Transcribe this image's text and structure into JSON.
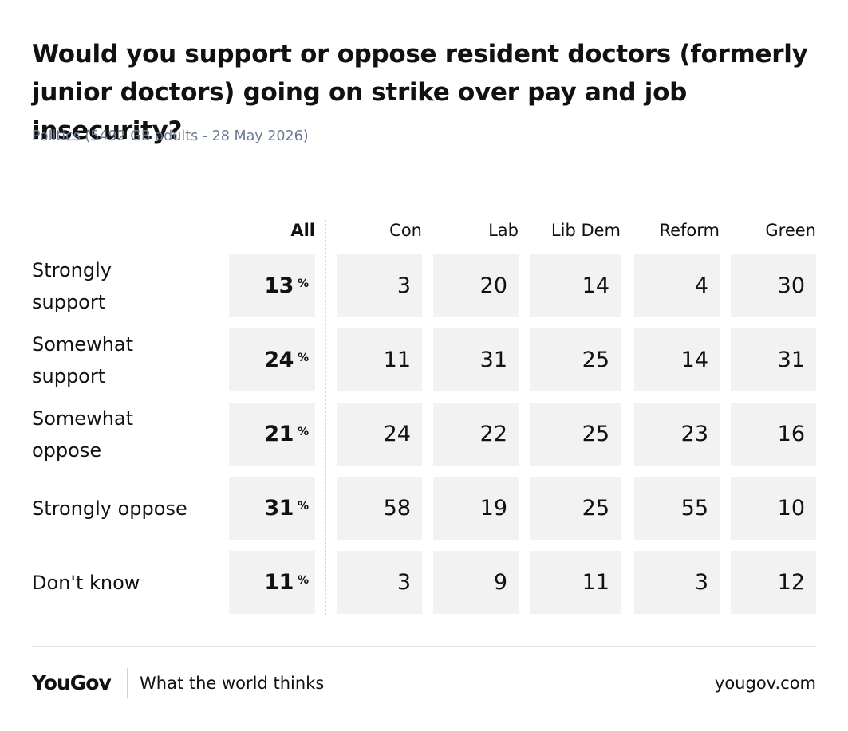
{
  "header": {
    "title": "Would you support or oppose resident doctors (formerly junior doctors) going on strike over pay and job insecurity?",
    "subtitle": "Politics (5492 GB adults - 28 May 2026)"
  },
  "footer": {
    "logo": "YouGov",
    "tagline": "What the world thinks",
    "url": "yougov.com"
  },
  "chart_data": {
    "type": "table",
    "title": "Would you support or oppose resident doctors (formerly junior doctors) going on strike over pay and job insecurity?",
    "subtitle": "Politics (5492 GB adults - 28 May 2026)",
    "unit": "%",
    "columns": [
      "All",
      "Con",
      "Lab",
      "Lib Dem",
      "Reform",
      "Green"
    ],
    "rows": [
      {
        "label": "Strongly support",
        "label_lines": [
          "Strongly",
          "support"
        ],
        "values": [
          13,
          3,
          20,
          14,
          4,
          30
        ]
      },
      {
        "label": "Somewhat support",
        "label_lines": [
          "Somewhat",
          "support"
        ],
        "values": [
          24,
          11,
          31,
          25,
          14,
          31
        ]
      },
      {
        "label": "Somewhat oppose",
        "label_lines": [
          "Somewhat",
          "oppose"
        ],
        "values": [
          21,
          24,
          22,
          25,
          23,
          16
        ]
      },
      {
        "label": "Strongly oppose",
        "label_lines": [
          "Strongly oppose"
        ],
        "values": [
          31,
          58,
          19,
          25,
          55,
          10
        ]
      },
      {
        "label": "Don't know",
        "label_lines": [
          "Don't know"
        ],
        "values": [
          11,
          3,
          9,
          11,
          3,
          12
        ]
      }
    ]
  }
}
